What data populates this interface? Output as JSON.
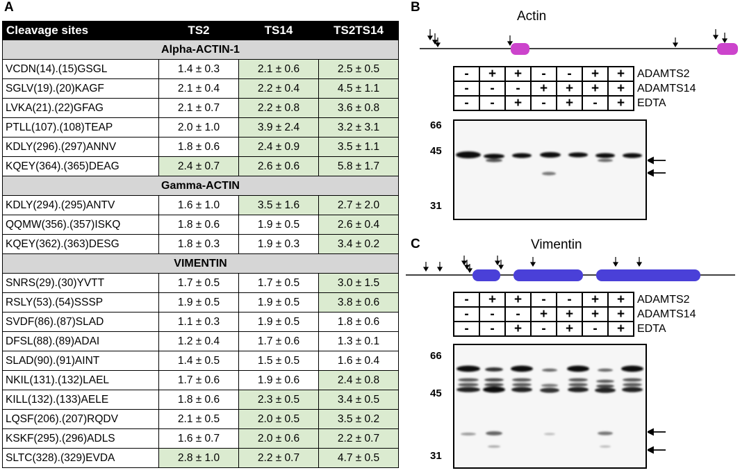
{
  "panels": {
    "a": "A",
    "b": "B",
    "c": "C"
  },
  "table": {
    "headers": [
      "Cleavage sites",
      "TS2",
      "TS14",
      "TS2TS14"
    ],
    "groups": [
      {
        "name": "Alpha-ACTIN-1",
        "rows": [
          {
            "site": "VCDN(14).(15)GSGL",
            "ts2": "1.4 ± 0.3",
            "ts14": "2.1 ± 0.6",
            "ts2ts14": "2.5 ± 0.5",
            "hl": [
              false,
              true,
              true
            ]
          },
          {
            "site": "SGLV(19).(20)KAGF",
            "ts2": "2.1 ± 0.4",
            "ts14": "2.2 ± 0.4",
            "ts2ts14": "4.5 ± 1.1",
            "hl": [
              false,
              true,
              true
            ]
          },
          {
            "site": "LVKA(21).(22)GFAG",
            "ts2": "2.1 ± 0.7",
            "ts14": "2.2 ± 0.8",
            "ts2ts14": "3.6 ± 0.8",
            "hl": [
              false,
              true,
              true
            ]
          },
          {
            "site": "PTLL(107).(108)TEAP",
            "ts2": "2.0 ± 1.0",
            "ts14": "3.9 ± 2.4",
            "ts2ts14": "3.2 ± 3.1",
            "hl": [
              false,
              true,
              true
            ]
          },
          {
            "site": "KDLY(296).(297)ANNV",
            "ts2": "1.8 ± 0.6",
            "ts14": "2.4 ± 0.9",
            "ts2ts14": "3.5  ± 1.1",
            "hl": [
              false,
              true,
              true
            ]
          },
          {
            "site": "KQEY(364).(365)DEAG",
            "ts2": "2.4 ± 0.7",
            "ts14": "2.6 ± 0.6",
            "ts2ts14": "5.8 ± 1.7",
            "hl": [
              true,
              true,
              true
            ]
          }
        ]
      },
      {
        "name": "Gamma-ACTIN",
        "rows": [
          {
            "site": "KDLY(294).(295)ANTV",
            "ts2": "1.6 ± 1.0",
            "ts14": "3.5 ± 1.6",
            "ts2ts14": "2.7 ± 2.0",
            "hl": [
              false,
              true,
              true
            ]
          },
          {
            "site": "QQMW(356).(357)ISKQ",
            "ts2": "1.8 ± 0.6",
            "ts14": "1.9 ± 0.5",
            "ts2ts14": "2.6 ± 0.4",
            "hl": [
              false,
              false,
              true
            ]
          },
          {
            "site": "KQEY(362).(363)DESG",
            "ts2": "1.8 ± 0.3",
            "ts14": "1.9 ± 0.3",
            "ts2ts14": "3.4 ± 0.2",
            "hl": [
              false,
              false,
              true
            ]
          }
        ]
      },
      {
        "name": "VIMENTIN",
        "rows": [
          {
            "site": "SNRS(29).(30)YVTT",
            "ts2": "1.7 ± 0.5",
            "ts14": "1.7 ± 0.5",
            "ts2ts14": "3.0 ± 1.5",
            "hl": [
              false,
              false,
              true
            ]
          },
          {
            "site": "RSLY(53).(54)SSSP",
            "ts2": "1.9 ± 0.5",
            "ts14": "1.9 ± 0.5",
            "ts2ts14": "3.8 ± 0.6",
            "hl": [
              false,
              false,
              true
            ]
          },
          {
            "site": "SVDF(86).(87)SLAD",
            "ts2": "1.1 ± 0.3",
            "ts14": "1.9 ± 0.5",
            "ts2ts14": "1.8 ± 0.6",
            "hl": [
              false,
              false,
              false
            ]
          },
          {
            "site": "DFSL(88).(89)ADAI",
            "ts2": "1.2 ± 0.4",
            "ts14": "1.7 ± 0.6",
            "ts2ts14": "1.3 ± 0.1",
            "hl": [
              false,
              false,
              false
            ]
          },
          {
            "site": "SLAD(90).(91)AINT",
            "ts2": "1.4 ± 0.5",
            "ts14": "1.5 ± 0.5",
            "ts2ts14": "1.6 ± 0.4",
            "hl": [
              false,
              false,
              false
            ]
          },
          {
            "site": "NKIL(131).(132)LAEL",
            "ts2": "1.7 ± 0.6",
            "ts14": "1.9 ± 0.6",
            "ts2ts14": "2.4 ± 0.8",
            "hl": [
              false,
              false,
              true
            ]
          },
          {
            "site": "KILL(132).(133)AELE",
            "ts2": "1.8 ± 0.6",
            "ts14": "2.3 ± 0.5",
            "ts2ts14": "3.4 ± 0.5",
            "hl": [
              false,
              true,
              true
            ]
          },
          {
            "site": "LQSF(206).(207)RQDV",
            "ts2": "2.1 ± 0.5",
            "ts14": "2.0 ± 0.5",
            "ts2ts14": "3.5 ± 0.2",
            "hl": [
              false,
              true,
              true
            ]
          },
          {
            "site": "KSKF(295).(296)ADLS",
            "ts2": "1.6 ± 0.7",
            "ts14": "2.0 ± 0.6",
            "ts2ts14": "2.2 ± 0.7",
            "hl": [
              false,
              true,
              true
            ]
          },
          {
            "site": "SLTC(328).(329)EVDA",
            "ts2": "2.8 ± 1.0",
            "ts14": "2.2 ± 0.7",
            "ts2ts14": "4.7 ± 0.5",
            "hl": [
              true,
              true,
              true
            ]
          }
        ]
      }
    ]
  },
  "conditions": {
    "labels": [
      "ADAMTS2",
      "ADAMTS14",
      "EDTA"
    ],
    "lanes": [
      [
        "-",
        "-",
        "-"
      ],
      [
        "+",
        "-",
        "-"
      ],
      [
        "+",
        "-",
        "+"
      ],
      [
        "-",
        "+",
        "-"
      ],
      [
        "-",
        "+",
        "+"
      ],
      [
        "+",
        "+",
        "-"
      ],
      [
        "+",
        "+",
        "+"
      ]
    ]
  },
  "actin": {
    "title": "Actin",
    "markers": [
      "66",
      "45",
      "31"
    ],
    "domain_color": "#cc44cc"
  },
  "vimentin": {
    "title": "Vimentin",
    "markers": [
      "66",
      "45",
      "31"
    ],
    "domain_color": "#4a40d8"
  }
}
